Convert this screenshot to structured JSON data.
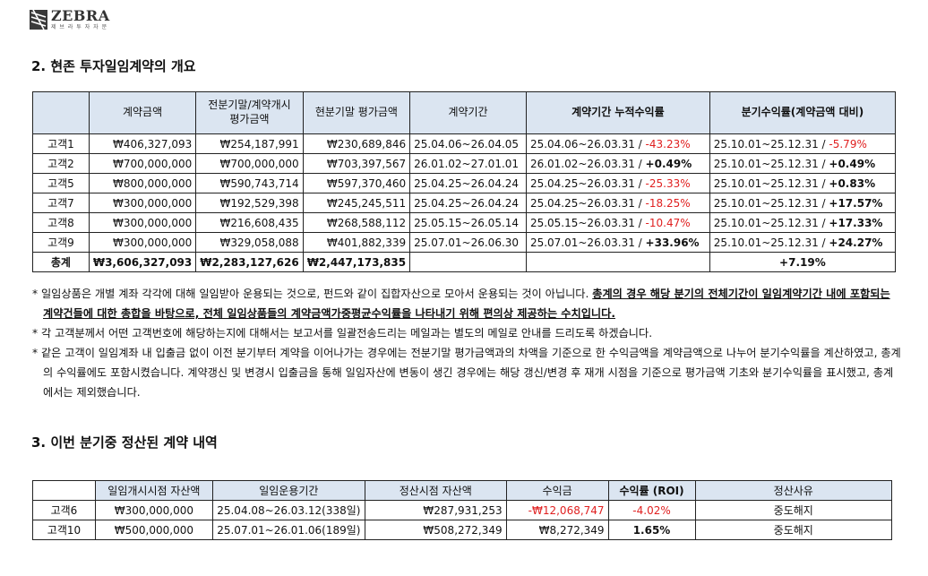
{
  "logo": {
    "name": "ZEBRA",
    "sub": "제 브 라 투 자 자 문"
  },
  "section2": {
    "title": "2. 현존 투자일임계약의 개요",
    "headers": [
      "",
      "계약금액",
      "전분기말/계약개시\n평가금액",
      "현분기말 평가금액",
      "계약기간",
      "계약기간 누적수익률",
      "분기수익률(계약금액 대비)"
    ],
    "rows": [
      {
        "name": "고객1",
        "amount": "₩406,327,093",
        "prev": "₩254,187,991",
        "curr": "₩230,689,846",
        "period": "25.04.06~26.04.05",
        "cum_period": "25.04.06~26.03.31 / ",
        "cum_rate": "-43.23%",
        "cum_neg": true,
        "q_period": "25.10.01~25.12.31 / ",
        "q_rate": "-5.79%",
        "q_neg": true
      },
      {
        "name": "고객2",
        "amount": "₩700,000,000",
        "prev": "₩700,000,000",
        "curr": "₩703,397,567",
        "period": "26.01.02~27.01.01",
        "cum_period": "26.01.02~26.03.31 / ",
        "cum_rate": "+0.49%",
        "cum_neg": false,
        "q_period": "25.10.01~25.12.31 / ",
        "q_rate": "+0.49%",
        "q_neg": false
      },
      {
        "name": "고객5",
        "amount": "₩800,000,000",
        "prev": "₩590,743,714",
        "curr": "₩597,370,460",
        "period": "25.04.25~26.04.24",
        "cum_period": "25.04.25~26.03.31 / ",
        "cum_rate": "-25.33%",
        "cum_neg": true,
        "q_period": "25.10.01~25.12.31 / ",
        "q_rate": "+0.83%",
        "q_neg": false
      },
      {
        "name": "고객7",
        "amount": "₩300,000,000",
        "prev": "₩192,529,398",
        "curr": "₩245,245,511",
        "period": "25.04.25~26.04.24",
        "cum_period": "25.04.25~26.03.31 / ",
        "cum_rate": "-18.25%",
        "cum_neg": true,
        "q_period": "25.10.01~25.12.31 / ",
        "q_rate": "+17.57%",
        "q_neg": false
      },
      {
        "name": "고객8",
        "amount": "₩300,000,000",
        "prev": "₩216,608,435",
        "curr": "₩268,588,112",
        "period": "25.05.15~26.05.14",
        "cum_period": "25.05.15~26.03.31 / ",
        "cum_rate": "-10.47%",
        "cum_neg": true,
        "q_period": "25.10.01~25.12.31 / ",
        "q_rate": "+17.33%",
        "q_neg": false
      },
      {
        "name": "고객9",
        "amount": "₩300,000,000",
        "prev": "₩329,058,088",
        "curr": "₩401,882,339",
        "period": "25.07.01~26.06.30",
        "cum_period": "25.07.01~26.03.31 / ",
        "cum_rate": "+33.96%",
        "cum_neg": false,
        "q_period": "25.10.01~25.12.31 / ",
        "q_rate": "+24.27%",
        "q_neg": false
      }
    ],
    "total": {
      "name": "총계",
      "amount": "₩3,606,327,093",
      "prev": "₩2,283,127,626",
      "curr": "₩2,447,173,835",
      "q_rate": "+7.19%"
    }
  },
  "notes": {
    "n1_plain": "* 일임상품은 개별 계좌 각각에 대해 일임받아 운용되는 것으로, 펀드와 같이 집합자산으로 모아서 운용되는 것이 아닙니다. ",
    "n1_emph": "총계의 경우 해당 분기의 전체기간이 일임계약기간 내에 포함되는 계약건들에 대한 총합을 바탕으로, 전체 일임상품들의 계약금액가중평균수익률을 나타내기 위해 편의상 제공하는 수치입니다.",
    "n2": "* 각 고객분께서 어떤 고객번호에 해당하는지에 대해서는 보고서를 일괄전송드리는 메일과는 별도의 메일로 안내를 드리도록 하겠습니다.",
    "n3": "* 같은 고객이 일임계좌 내 입출금 없이 이전 분기부터 계약을 이어나가는 경우에는 전분기말 평가금액과의 차액을 기준으로 한 수익금액을 계약금액으로 나누어 분기수익률을 계산하였고, 총계의 수익률에도 포함시켰습니다. 계약갱신 및 변경시 입출금을 통해 일임자산에 변동이 생긴 경우에는 해당 갱신/변경 후 재개 시점을 기준으로 평가금액 기초와 분기수익률을 표시했고, 총계에서는 제외했습니다."
  },
  "section3": {
    "title": "3. 이번 분기중 정산된 계약 내역",
    "headers": [
      "",
      "일임개시시점 자산액",
      "일임운용기간",
      "정산시점 자산액",
      "수익금",
      "수익률 (ROI)",
      "정산사유"
    ],
    "rows": [
      {
        "name": "고객6",
        "start": "₩300,000,000",
        "period": "25.04.08~26.03.12(338일)",
        "end": "₩287,931,253",
        "profit": "-₩12,068,747",
        "roi": "-4.02%",
        "neg": true,
        "reason": "중도해지"
      },
      {
        "name": "고객10",
        "start": "₩500,000,000",
        "period": "25.07.01~26.01.06(189일)",
        "end": "₩508,272,349",
        "profit": "₩8,272,349",
        "roi": "1.65%",
        "neg": false,
        "reason": "중도해지"
      }
    ]
  },
  "colors": {
    "header_bg": "#dbe5f1",
    "negative": "#e02020",
    "border": "#222222"
  }
}
